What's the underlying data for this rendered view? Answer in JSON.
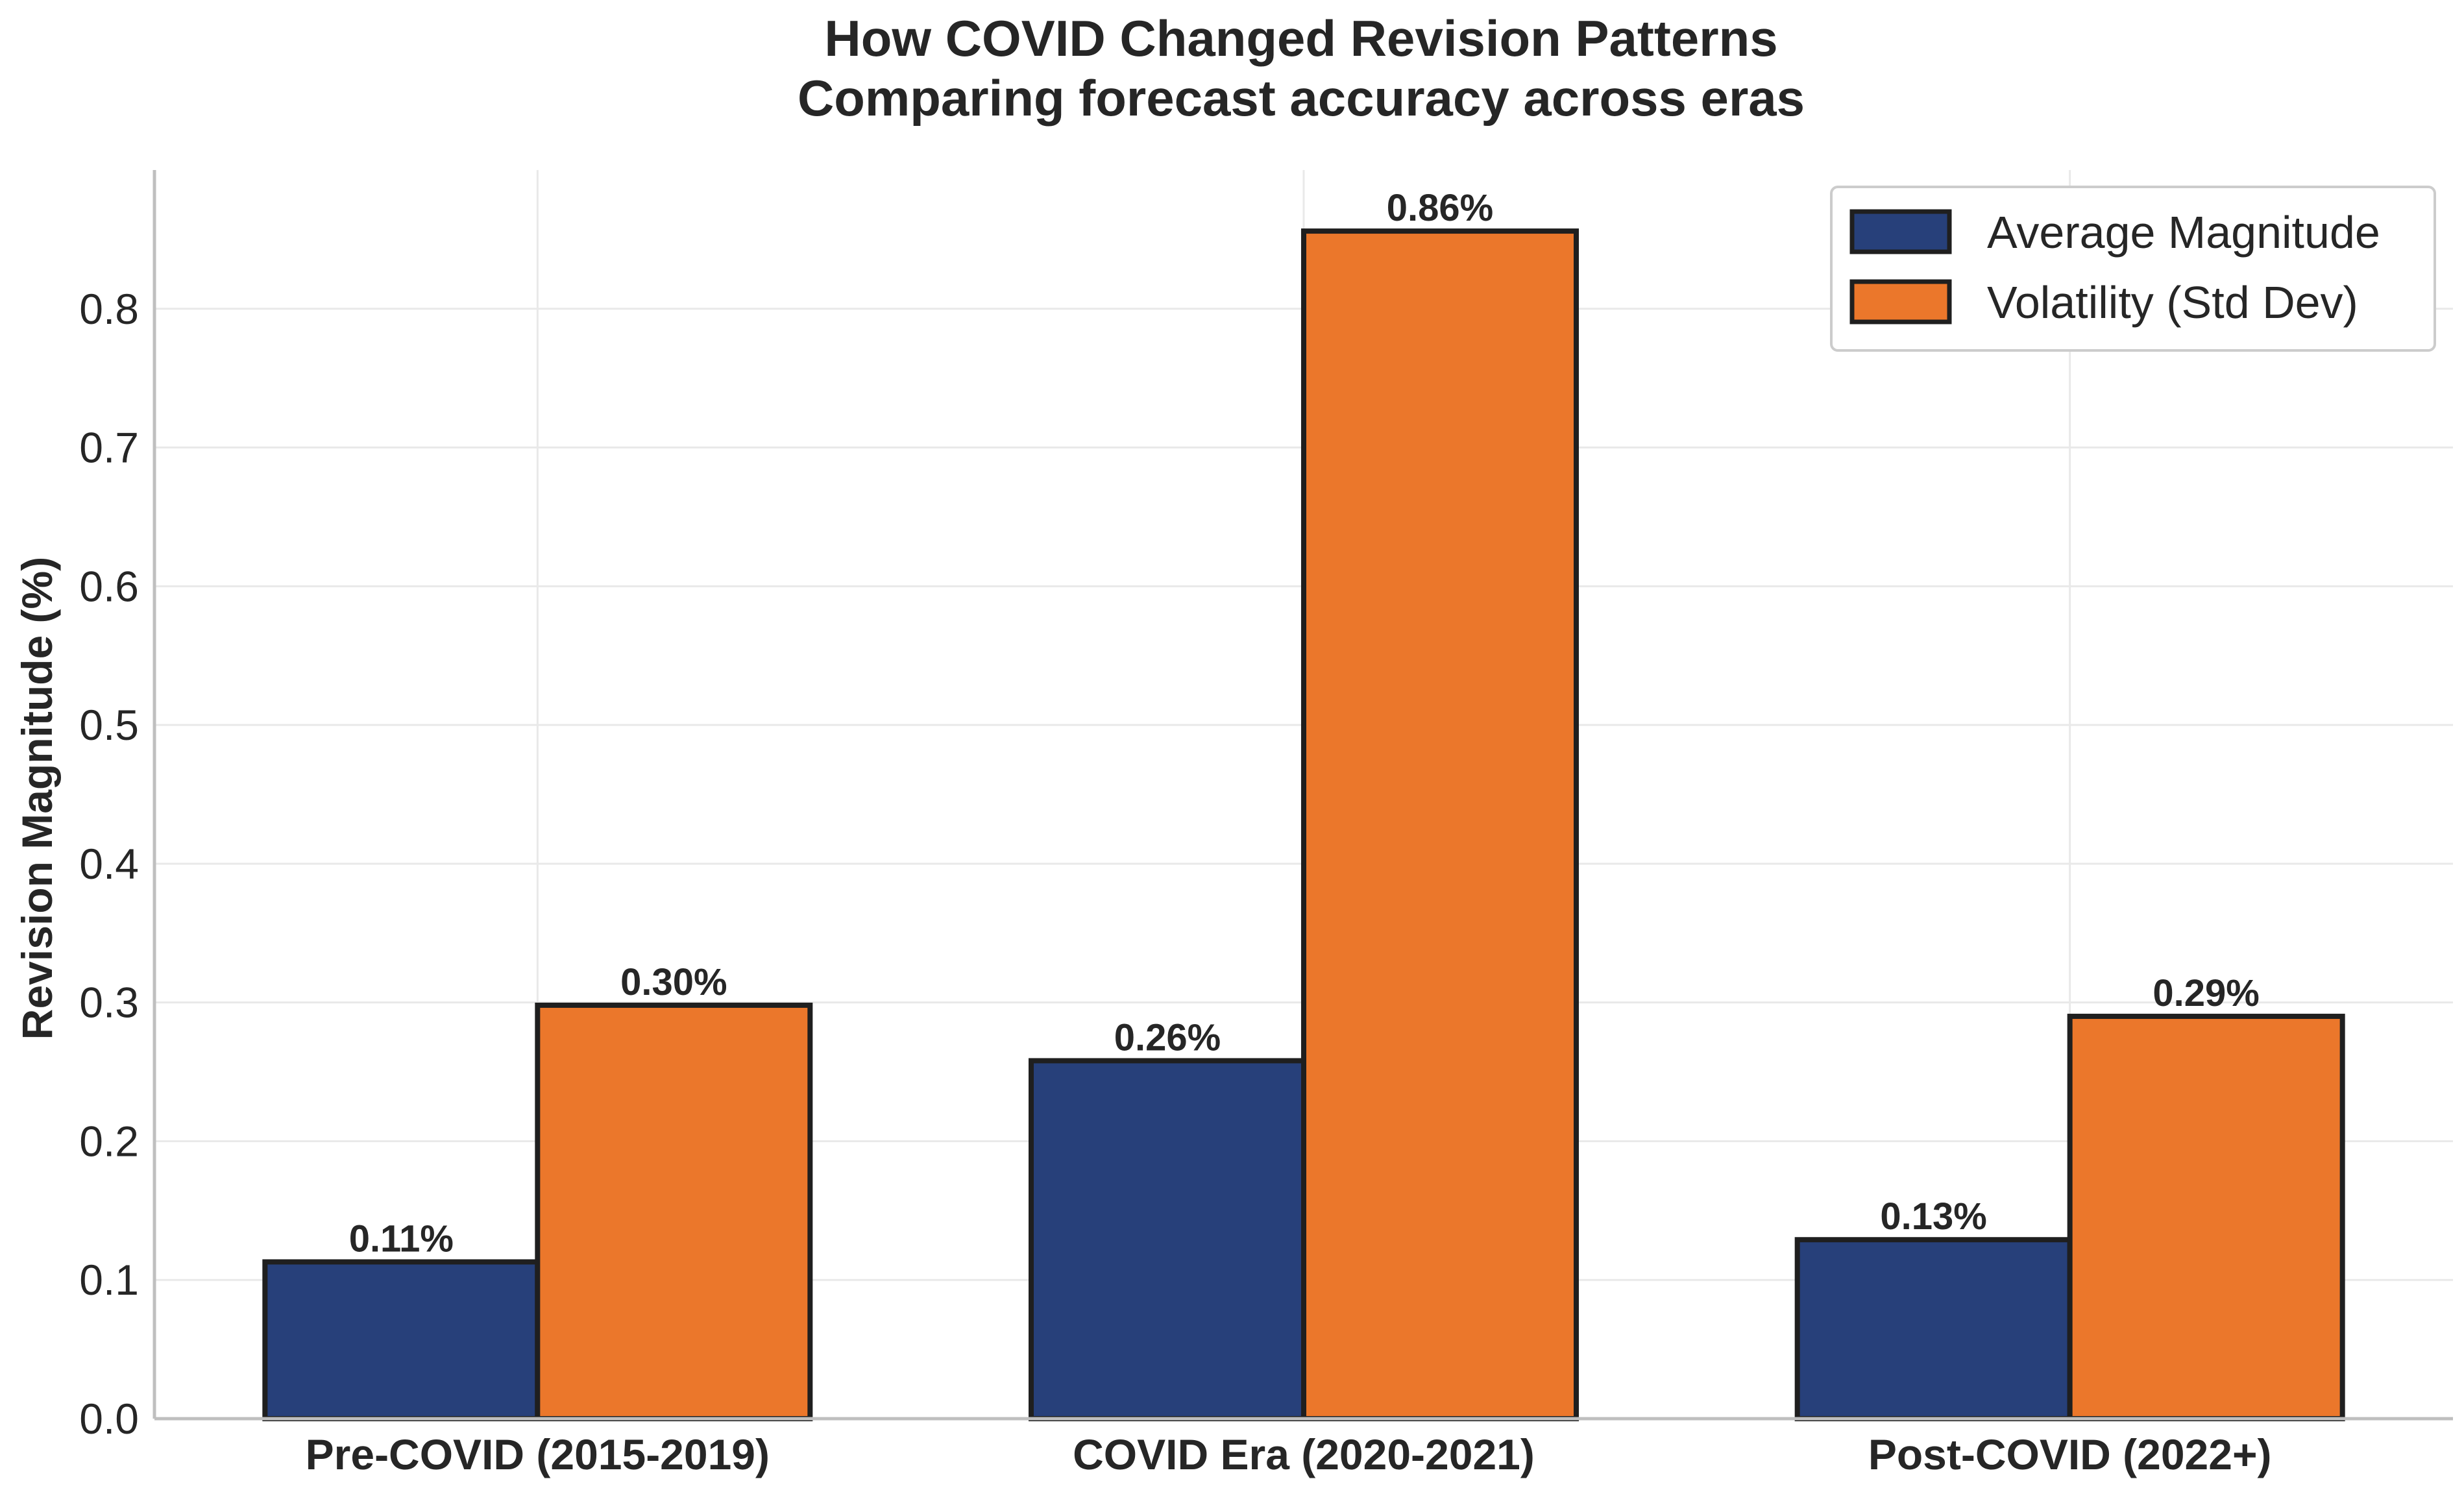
{
  "chart_data": {
    "type": "bar",
    "title": "How COVID Changed Revision Patterns",
    "subtitle": "Comparing forecast accuracy across eras",
    "xlabel": "",
    "ylabel": "Revision Magnitude (%)",
    "categories": [
      "Pre-COVID (2015-2019)",
      "COVID Era (2020-2021)",
      "Post-COVID (2022+)"
    ],
    "series": [
      {
        "name": "Average Magnitude",
        "color": "#27407a",
        "values": [
          0.113,
          0.258,
          0.129
        ],
        "labels": [
          "0.11%",
          "0.26%",
          "0.13%"
        ]
      },
      {
        "name": "Volatility (Std Dev)",
        "color": "#eb772b",
        "values": [
          0.298,
          0.856,
          0.29
        ],
        "labels": [
          "0.30%",
          "0.86%",
          "0.29%"
        ]
      }
    ],
    "ylim": [
      0,
      0.9
    ],
    "yticks": [
      0.0,
      0.1,
      0.2,
      0.3,
      0.4,
      0.5,
      0.6,
      0.7,
      0.8
    ],
    "ytick_labels": [
      "0.0",
      "0.1",
      "0.2",
      "0.3",
      "0.4",
      "0.5",
      "0.6",
      "0.7",
      "0.8"
    ],
    "grid": true,
    "legend_position": "top-right"
  }
}
